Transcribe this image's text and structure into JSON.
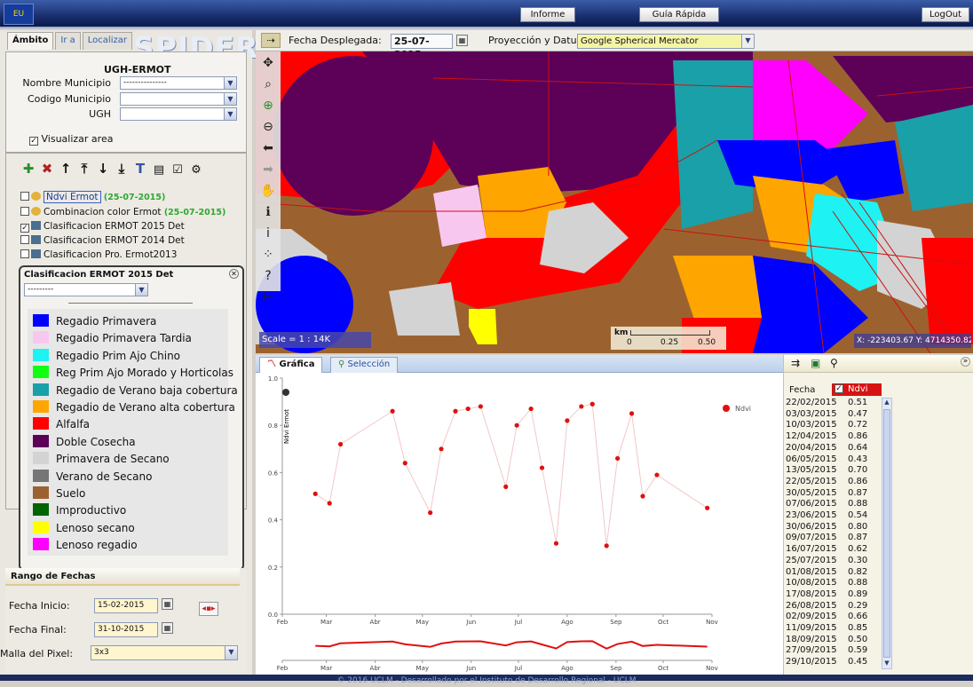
{
  "header": {
    "logo_text": "EU",
    "buttons": {
      "informe": "Informe",
      "guia": "Guía Rápida",
      "logout": "LogOut"
    }
  },
  "left": {
    "tabs": [
      "Ámbito",
      "Ir a",
      "Localizar"
    ],
    "logo": "SPIDER",
    "ambito": {
      "title": "UGH-ERMOT",
      "nombre_label": "Nombre Municipio",
      "nombre_value": "---------------",
      "codigo_label": "Codigo Municipio",
      "codigo_value": "",
      "ugh_label": "UGH",
      "ugh_value": "",
      "visualizar": "Visualizar area"
    },
    "tools": [
      "add-layer",
      "remove-layer",
      "move-up",
      "move-top",
      "move-down",
      "move-bottom",
      "text",
      "list",
      "info",
      "config"
    ],
    "layers": [
      {
        "name": "Ndvi Ermot",
        "date": "(25-07-2015)",
        "checked": false
      },
      {
        "name": "Combinacion color Ermot",
        "date": "(25-07-2015)",
        "checked": false
      },
      {
        "name": "Clasificacion ERMOT 2015 Det",
        "date": "",
        "checked": true
      },
      {
        "name": "Clasificacion ERMOT 2014 Det",
        "date": "",
        "checked": false
      },
      {
        "name": "Clasificacion Pro. Ermot2013",
        "date": "",
        "checked": false
      }
    ],
    "legend": {
      "title": "Clasificacion ERMOT 2015 Det",
      "select": "---------",
      "items": [
        {
          "label": "Regadio Primavera",
          "color": "#0000ff"
        },
        {
          "label": "Regadio Primavera Tardia",
          "color": "#f8c7f0"
        },
        {
          "label": "Regadio Prim Ajo Chino",
          "color": "#1ef2f2"
        },
        {
          "label": "Reg Prim Ajo Morado y Horticolas",
          "color": "#10ff10"
        },
        {
          "label": "Regadio de Verano baja cobertura",
          "color": "#1aa0a8"
        },
        {
          "label": "Regadio de Verano alta cobertura",
          "color": "#ffa500"
        },
        {
          "label": "Alfalfa",
          "color": "#ff0000"
        },
        {
          "label": "Doble Cosecha",
          "color": "#5c0058"
        },
        {
          "label": "Primavera de Secano",
          "color": "#d3d3d3"
        },
        {
          "label": "Verano de Secano",
          "color": "#767676"
        },
        {
          "label": "Suelo",
          "color": "#9b6230"
        },
        {
          "label": "Improductivo",
          "color": "#006400"
        },
        {
          "label": "Lenoso secano",
          "color": "#ffff00"
        },
        {
          "label": "Lenoso regadio",
          "color": "#ff00ff"
        }
      ]
    },
    "fechas": {
      "title": "Rango de Fechas",
      "inicio_label": "Fecha Inicio:",
      "inicio": "15-02-2015",
      "final_label": "Fecha Final:",
      "final": "31-10-2015",
      "malla_label": "Malla del Pixel:",
      "malla": "3x3"
    }
  },
  "map": {
    "fecha_label": "Fecha Desplegada:",
    "fecha": "25-07-2015",
    "proj_label": "Proyección y Datum:",
    "proj": "Google Spherical Mercator",
    "scale": "Scale = 1 : 14K",
    "km": "km",
    "ticks": [
      "0",
      "0.25",
      "0.50"
    ],
    "coords": "X: -223403.67 Y: 4714350.82"
  },
  "chart_tabs": {
    "grafica": "Gráfica",
    "seleccion": "Selección"
  },
  "chart_data": {
    "type": "scatter",
    "title": "",
    "ylabel": "Ndvi Ermot",
    "legend": "Ndvi",
    "ylim": [
      0,
      1
    ],
    "yticks": [
      "0.0",
      "0.2",
      "0.4",
      "0.6",
      "0.8",
      "1.0"
    ],
    "months": [
      "Feb",
      "Mar",
      "Abr",
      "May",
      "Jun",
      "Jul",
      "Ago",
      "Sep",
      "Oct",
      "Nov"
    ],
    "points": [
      {
        "x": "2015-02-22",
        "y": 0.51
      },
      {
        "x": "2015-03-03",
        "y": 0.47
      },
      {
        "x": "2015-03-10",
        "y": 0.72
      },
      {
        "x": "2015-04-12",
        "y": 0.86
      },
      {
        "x": "2015-04-20",
        "y": 0.64
      },
      {
        "x": "2015-05-06",
        "y": 0.43
      },
      {
        "x": "2015-05-13",
        "y": 0.7
      },
      {
        "x": "2015-05-22",
        "y": 0.86
      },
      {
        "x": "2015-05-30",
        "y": 0.87
      },
      {
        "x": "2015-06-07",
        "y": 0.88
      },
      {
        "x": "2015-06-23",
        "y": 0.54
      },
      {
        "x": "2015-06-30",
        "y": 0.8
      },
      {
        "x": "2015-07-09",
        "y": 0.87
      },
      {
        "x": "2015-07-16",
        "y": 0.62
      },
      {
        "x": "2015-07-25",
        "y": 0.3
      },
      {
        "x": "2015-08-01",
        "y": 0.82
      },
      {
        "x": "2015-08-10",
        "y": 0.88
      },
      {
        "x": "2015-08-17",
        "y": 0.89
      },
      {
        "x": "2015-08-26",
        "y": 0.29
      },
      {
        "x": "2015-09-02",
        "y": 0.66
      },
      {
        "x": "2015-09-11",
        "y": 0.85
      },
      {
        "x": "2015-09-18",
        "y": 0.5
      },
      {
        "x": "2015-09-27",
        "y": 0.59
      },
      {
        "x": "2015-10-29",
        "y": 0.45
      }
    ]
  },
  "table": {
    "col_fecha": "Fecha",
    "col_ndvi": "Ndvi",
    "rows": [
      [
        "22/02/2015",
        "0.51"
      ],
      [
        "03/03/2015",
        "0.47"
      ],
      [
        "10/03/2015",
        "0.72"
      ],
      [
        "12/04/2015",
        "0.86"
      ],
      [
        "20/04/2015",
        "0.64"
      ],
      [
        "06/05/2015",
        "0.43"
      ],
      [
        "13/05/2015",
        "0.70"
      ],
      [
        "22/05/2015",
        "0.86"
      ],
      [
        "30/05/2015",
        "0.87"
      ],
      [
        "07/06/2015",
        "0.88"
      ],
      [
        "23/06/2015",
        "0.54"
      ],
      [
        "30/06/2015",
        "0.80"
      ],
      [
        "09/07/2015",
        "0.87"
      ],
      [
        "16/07/2015",
        "0.62"
      ],
      [
        "25/07/2015",
        "0.30"
      ],
      [
        "01/08/2015",
        "0.82"
      ],
      [
        "10/08/2015",
        "0.88"
      ],
      [
        "17/08/2015",
        "0.89"
      ],
      [
        "26/08/2015",
        "0.29"
      ],
      [
        "02/09/2015",
        "0.66"
      ],
      [
        "11/09/2015",
        "0.85"
      ],
      [
        "18/09/2015",
        "0.50"
      ],
      [
        "27/09/2015",
        "0.59"
      ],
      [
        "29/10/2015",
        "0.45"
      ]
    ]
  },
  "footer": "© 2016 UCLM - Desarrollado por el Instituto de Desarrollo Regional - UCLM"
}
